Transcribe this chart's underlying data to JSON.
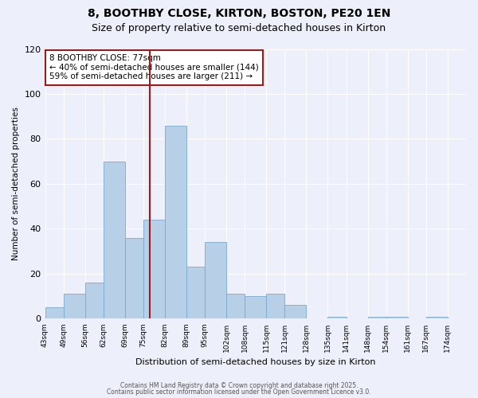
{
  "title_line1": "8, BOOTHBY CLOSE, KIRTON, BOSTON, PE20 1EN",
  "title_line2": "Size of property relative to semi-detached houses in Kirton",
  "xlabel": "Distribution of semi-detached houses by size in Kirton",
  "ylabel": "Number of semi-detached properties",
  "bin_labels": [
    "43sqm",
    "49sqm",
    "56sqm",
    "62sqm",
    "69sqm",
    "75sqm",
    "82sqm",
    "89sqm",
    "95sqm",
    "102sqm",
    "108sqm",
    "115sqm",
    "121sqm",
    "128sqm",
    "135sqm",
    "141sqm",
    "148sqm",
    "154sqm",
    "161sqm",
    "167sqm",
    "174sqm"
  ],
  "bin_edges": [
    43,
    49,
    56,
    62,
    69,
    75,
    82,
    89,
    95,
    102,
    108,
    115,
    121,
    128,
    135,
    141,
    148,
    154,
    161,
    167,
    174,
    180
  ],
  "bar_heights": [
    5,
    11,
    16,
    70,
    36,
    44,
    86,
    23,
    34,
    11,
    10,
    11,
    6,
    0,
    1,
    0,
    1,
    1,
    0,
    1,
    0
  ],
  "bar_color": "#b8cfe8",
  "bar_edge_color": "#7aaacf",
  "property_line_x": 77,
  "property_line_color": "#9b1c1c",
  "annotation_text": "8 BOOTHBY CLOSE: 77sqm\n← 40% of semi-detached houses are smaller (144)\n59% of semi-detached houses are larger (211) →",
  "annotation_box_color": "#ffffff",
  "annotation_box_edge_color": "#9b1c1c",
  "background_color": "#edf0fa",
  "ylim": [
    0,
    120
  ],
  "yticks": [
    0,
    20,
    40,
    60,
    80,
    100,
    120
  ],
  "footer_line1": "Contains HM Land Registry data © Crown copyright and database right 2025.",
  "footer_line2": "Contains public sector information licensed under the Open Government Licence v3.0.",
  "title_fontsize": 10,
  "subtitle_fontsize": 9,
  "grid_color": "#ffffff"
}
